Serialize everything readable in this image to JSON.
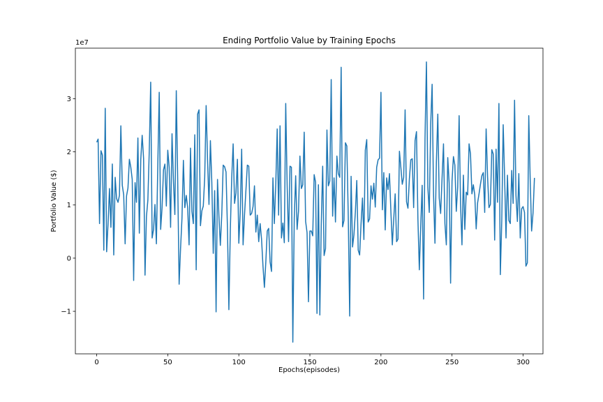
{
  "chart_data": {
    "type": "line",
    "title": "Ending Portfolio Value by Training Epochs",
    "xlabel": "Epochs(episodes)",
    "ylabel": "Portfolio Value ($)",
    "y_multiplier_label": "1e7",
    "xlim": [
      -15,
      314
    ],
    "ylim": [
      -1.8,
      3.95
    ],
    "x_ticks": [
      0,
      50,
      100,
      150,
      200,
      250,
      300
    ],
    "y_ticks": [
      -1,
      0,
      1,
      2,
      3
    ],
    "y_tick_labels": [
      "−1",
      "0",
      "1",
      "2",
      "3"
    ],
    "grid": false,
    "color": "#1f77b4",
    "series": [
      {
        "x_start": 0,
        "x_step": 1,
        "values": [
          2.18,
          2.24,
          0.65,
          2.02,
          1.94,
          0.15,
          2.82,
          0.12,
          0.65,
          1.31,
          0.58,
          1.77,
          0.06,
          1.52,
          1.12,
          1.05,
          1.18,
          2.49,
          1.37,
          1.19,
          0.27,
          1.17,
          1.32,
          1.86,
          1.71,
          1.48,
          -0.42,
          1.42,
          1.05,
          2.26,
          0.47,
          1.85,
          2.31,
          1.87,
          -0.32,
          0.78,
          1.09,
          2.03,
          3.31,
          0.38,
          0.54,
          1.01,
          0.27,
          1.77,
          3.12,
          0.54,
          0.95,
          1.66,
          1.77,
          0.98,
          2.03,
          1.71,
          0.58,
          2.34,
          1.45,
          0.82,
          3.15,
          1.45,
          -0.49,
          0.18,
          0.75,
          1.84,
          0.95,
          1.18,
          0.95,
          0.25,
          2.07,
          0.88,
          0.65,
          2.32,
          -0.22,
          2.71,
          2.79,
          0.61,
          0.89,
          0.98,
          1.52,
          2.87,
          1.85,
          1.01,
          2.21,
          1.42,
          0.09,
          1.27,
          -1.01,
          1.48,
          0.79,
          0.24,
          0.82,
          1.75,
          1.72,
          1.62,
          0.56,
          -0.97,
          0.51,
          1.51,
          2.15,
          1.03,
          1.23,
          1.86,
          0.28,
          0.86,
          2.05,
          0.25,
          0.81,
          1.28,
          1.75,
          1.73,
          0.81,
          0.84,
          0.97,
          1.36,
          0.49,
          0.81,
          0.31,
          0.65,
          0.35,
          -0.15,
          -0.55,
          -0.07,
          0.51,
          0.56,
          -0.07,
          -0.25,
          1.51,
          0.65,
          1.39,
          2.43,
          0.81,
          2.49,
          0.38,
          0.66,
          0.29,
          2.91,
          1.37,
          0.31,
          1.73,
          1.71,
          -1.58,
          0.75,
          1.55,
          0.54,
          0.88,
          1.92,
          1.31,
          1.38,
          2.37,
          0.69,
          0.48,
          -0.82,
          0.51,
          0.51,
          0.42,
          1.57,
          1.43,
          -1.04,
          1.38,
          -1.07,
          0.63,
          1.73,
          0.05,
          0.18,
          2.41,
          1.36,
          1.45,
          3.36,
          0.79,
          1.51,
          0.68,
          1.92,
          1.59,
          1.52,
          3.59,
          0.59,
          0.71,
          2.17,
          2.11,
          0.79,
          -1.09,
          1.54,
          0.21,
          0.44,
          0.87,
          1.46,
          0.15,
          0.06,
          0.65,
          1.13,
          0.35,
          2.03,
          2.23,
          0.68,
          0.74,
          1.36,
          1.11,
          1.41,
          0.96,
          1.71,
          1.85,
          1.88,
          3.12,
          0.91,
          1.61,
          0.53,
          1.51,
          1.29,
          1.59,
          0.87,
          0.25,
          0.74,
          1.21,
          0.31,
          0.36,
          2.01,
          1.71,
          1.39,
          1.52,
          2.79,
          1.06,
          0.94,
          1.49,
          1.85,
          1.87,
          0.95,
          2.21,
          2.38,
          0.74,
          -0.22,
          0.61,
          1.37,
          -0.77,
          2.25,
          3.69,
          1.33,
          0.86,
          2.52,
          3.27,
          1.19,
          0.28,
          1.81,
          2.71,
          1.13,
          0.84,
          1.51,
          2.15,
          0.65,
          0.25,
          1.89,
          1.41,
          -0.47,
          1.45,
          1.91,
          1.75,
          0.88,
          1.34,
          2.68,
          1.02,
          0.25,
          1.56,
          0.54,
          1.24,
          1.19,
          2.15,
          1.96,
          1.21,
          1.38,
          1.19,
          0.55,
          1.04,
          1.21,
          1.39,
          1.55,
          1.61,
          0.86,
          2.43,
          1.54,
          0.95,
          1.01,
          2.04,
          1.96,
          0.34,
          2.05,
          1.05,
          2.91,
          -0.31,
          0.71,
          2.51,
          1.52,
          0.38,
          1.56,
          0.71,
          0.65,
          1.65,
          1.03,
          2.97,
          1.18,
          0.69,
          1.59,
          0.38,
          0.93,
          0.97,
          0.86,
          -0.15,
          -0.09,
          2.68,
          1.49,
          0.51,
          0.85,
          1.51
        ]
      }
    ]
  }
}
